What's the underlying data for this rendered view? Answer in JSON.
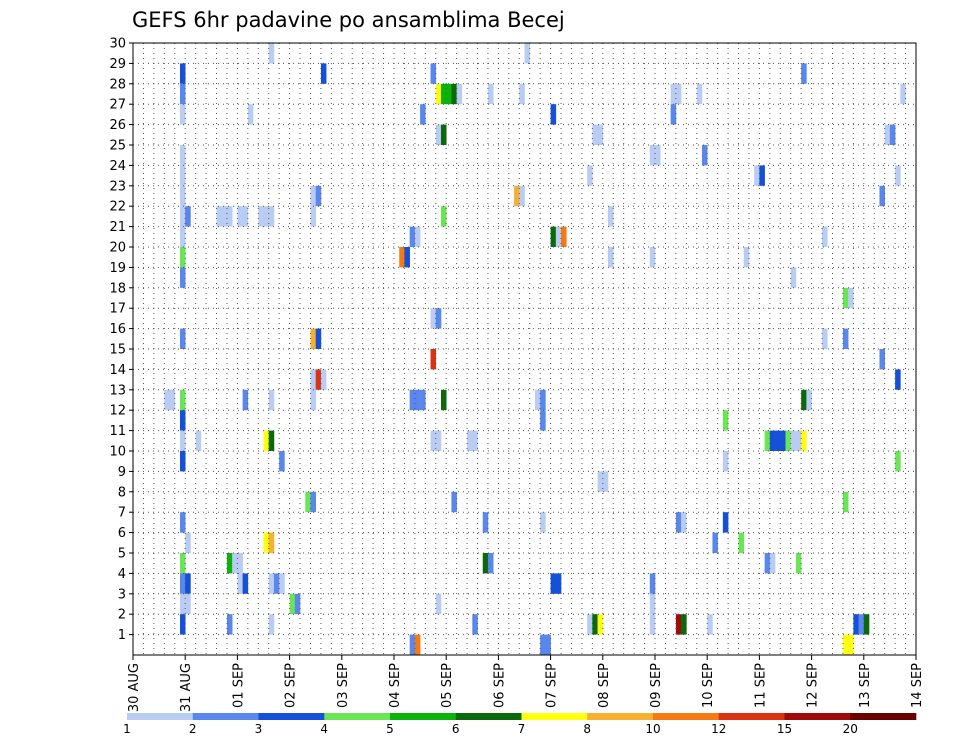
{
  "chart_data": {
    "type": "heatmap",
    "title": "GEFS 6hr padavine po ansamblima Becej",
    "x_ticks": [
      "30 AUG",
      "31 AUG",
      "01 SEP",
      "02 SEP",
      "03 SEP",
      "04 SEP",
      "05 SEP",
      "06 SEP",
      "07 SEP",
      "08 SEP",
      "09 SEP",
      "10 SEP",
      "11 SEP",
      "12 SEP",
      "13 SEP",
      "14 SEP"
    ],
    "y_ticks": [
      1,
      2,
      3,
      4,
      5,
      6,
      7,
      8,
      9,
      10,
      11,
      12,
      13,
      14,
      15,
      16,
      17,
      18,
      19,
      20,
      21,
      22,
      23,
      24,
      25,
      26,
      27,
      28,
      29,
      30
    ],
    "grid": true,
    "x_step_hours": 6,
    "colorbar": {
      "labels": [
        "1",
        "2",
        "3",
        "4",
        "5",
        "6",
        "7",
        "8",
        "10",
        "12",
        "15",
        "20"
      ],
      "colors": [
        "#b8ccf4",
        "#5a87ee",
        "#1550d8",
        "#6ae555",
        "#0ab40a",
        "#0a6a0a",
        "#ffff10",
        "#f8b030",
        "#f57a14",
        "#dc3214",
        "#a00a0a",
        "#6a0000"
      ]
    },
    "cells": [
      [
        1,
        30,
        2
      ],
      [
        9,
        30,
        7
      ],
      [
        59,
        30,
        2
      ],
      [
        115,
        30,
        1
      ],
      [
        116,
        30,
        1
      ],
      [
        133,
        30,
        1
      ],
      [
        134,
        30,
        1
      ],
      [
        142,
        30,
        10
      ],
      [
        26,
        29,
        1
      ],
      [
        75,
        29,
        1
      ],
      [
        9,
        28,
        3
      ],
      [
        36,
        28,
        3
      ],
      [
        57,
        28,
        2
      ],
      [
        128,
        28,
        2
      ],
      [
        9,
        27,
        2
      ],
      [
        58,
        27,
        7
      ],
      [
        59,
        27,
        5
      ],
      [
        60,
        27,
        5
      ],
      [
        61,
        27,
        6
      ],
      [
        62,
        27,
        1
      ],
      [
        68,
        27,
        1
      ],
      [
        74,
        27,
        1
      ],
      [
        103,
        27,
        1
      ],
      [
        104,
        27,
        1
      ],
      [
        108,
        27,
        1
      ],
      [
        147,
        27,
        1
      ],
      [
        9,
        26,
        1
      ],
      [
        22,
        26,
        1
      ],
      [
        55,
        26,
        2
      ],
      [
        80,
        26,
        3
      ],
      [
        103,
        26,
        2
      ],
      [
        58,
        25,
        1
      ],
      [
        59,
        25,
        6
      ],
      [
        88,
        25,
        1
      ],
      [
        89,
        25,
        1
      ],
      [
        144,
        25,
        1
      ],
      [
        145,
        25,
        2
      ],
      [
        9,
        24,
        1
      ],
      [
        99,
        24,
        1
      ],
      [
        100,
        24,
        1
      ],
      [
        109,
        24,
        2
      ],
      [
        9,
        23,
        1
      ],
      [
        87,
        23,
        1
      ],
      [
        119,
        23,
        1
      ],
      [
        120,
        23,
        3
      ],
      [
        146,
        23,
        1
      ],
      [
        9,
        22,
        1
      ],
      [
        34,
        22,
        1
      ],
      [
        35,
        22,
        2
      ],
      [
        73,
        22,
        8
      ],
      [
        74,
        22,
        1
      ],
      [
        143,
        22,
        2
      ],
      [
        9,
        21,
        1
      ],
      [
        10,
        21,
        2
      ],
      [
        16,
        21,
        1
      ],
      [
        17,
        21,
        1
      ],
      [
        18,
        21,
        1
      ],
      [
        20,
        21,
        1
      ],
      [
        21,
        21,
        1
      ],
      [
        24,
        21,
        1
      ],
      [
        25,
        21,
        1
      ],
      [
        26,
        21,
        1
      ],
      [
        34,
        21,
        1
      ],
      [
        59,
        21,
        4
      ],
      [
        91,
        21,
        1
      ],
      [
        9,
        20,
        1
      ],
      [
        53,
        20,
        2
      ],
      [
        54,
        20,
        1
      ],
      [
        80,
        20,
        6
      ],
      [
        81,
        20,
        1
      ],
      [
        82,
        20,
        9
      ],
      [
        132,
        20,
        1
      ],
      [
        9,
        19,
        4
      ],
      [
        51,
        19,
        9
      ],
      [
        52,
        19,
        3
      ],
      [
        91,
        19,
        1
      ],
      [
        99,
        19,
        1
      ],
      [
        117,
        19,
        1
      ],
      [
        9,
        18,
        2
      ],
      [
        126,
        18,
        1
      ],
      [
        136,
        17,
        4
      ],
      [
        137,
        17,
        1
      ],
      [
        57,
        16,
        1
      ],
      [
        58,
        16,
        2
      ],
      [
        9,
        15,
        2
      ],
      [
        34,
        15,
        8
      ],
      [
        35,
        15,
        3
      ],
      [
        132,
        15,
        1
      ],
      [
        136,
        15,
        2
      ],
      [
        57,
        14,
        10
      ],
      [
        143,
        14,
        2
      ],
      [
        34,
        13,
        1
      ],
      [
        35,
        13,
        10
      ],
      [
        36,
        13,
        1
      ],
      [
        146,
        13,
        3
      ],
      [
        6,
        12,
        1
      ],
      [
        7,
        12,
        1
      ],
      [
        9,
        12,
        4
      ],
      [
        21,
        12,
        2
      ],
      [
        26,
        12,
        1
      ],
      [
        34,
        12,
        1
      ],
      [
        53,
        12,
        2
      ],
      [
        54,
        12,
        2
      ],
      [
        55,
        12,
        2
      ],
      [
        59,
        12,
        6
      ],
      [
        77,
        12,
        1
      ],
      [
        78,
        12,
        2
      ],
      [
        128,
        12,
        6
      ],
      [
        129,
        12,
        1
      ],
      [
        9,
        11,
        3
      ],
      [
        78,
        11,
        2
      ],
      [
        113,
        11,
        4
      ],
      [
        9,
        10,
        1
      ],
      [
        12,
        10,
        1
      ],
      [
        25,
        10,
        7
      ],
      [
        26,
        10,
        6
      ],
      [
        57,
        10,
        1
      ],
      [
        58,
        10,
        1
      ],
      [
        64,
        10,
        1
      ],
      [
        65,
        10,
        1
      ],
      [
        121,
        10,
        4
      ],
      [
        122,
        10,
        3
      ],
      [
        123,
        10,
        3
      ],
      [
        124,
        10,
        3
      ],
      [
        125,
        10,
        4
      ],
      [
        126,
        10,
        1
      ],
      [
        127,
        10,
        1
      ],
      [
        128,
        10,
        7
      ],
      [
        9,
        9,
        3
      ],
      [
        28,
        9,
        2
      ],
      [
        113,
        9,
        1
      ],
      [
        146,
        9,
        4
      ],
      [
        89,
        8,
        1
      ],
      [
        90,
        8,
        1
      ],
      [
        33,
        7,
        4
      ],
      [
        34,
        7,
        2
      ],
      [
        61,
        7,
        2
      ],
      [
        136,
        7,
        4
      ],
      [
        9,
        6,
        2
      ],
      [
        67,
        6,
        2
      ],
      [
        78,
        6,
        1
      ],
      [
        104,
        6,
        2
      ],
      [
        105,
        6,
        1
      ],
      [
        113,
        6,
        3
      ],
      [
        10,
        5,
        1
      ],
      [
        25,
        5,
        7
      ],
      [
        26,
        5,
        8
      ],
      [
        111,
        5,
        2
      ],
      [
        116,
        5,
        4
      ],
      [
        9,
        4,
        4
      ],
      [
        18,
        4,
        5
      ],
      [
        19,
        4,
        1
      ],
      [
        20,
        4,
        1
      ],
      [
        67,
        4,
        6
      ],
      [
        68,
        4,
        2
      ],
      [
        121,
        4,
        2
      ],
      [
        122,
        4,
        1
      ],
      [
        127,
        4,
        4
      ],
      [
        9,
        3,
        2
      ],
      [
        10,
        3,
        3
      ],
      [
        20,
        3,
        1
      ],
      [
        21,
        3,
        3
      ],
      [
        26,
        3,
        1
      ],
      [
        27,
        3,
        2
      ],
      [
        28,
        3,
        1
      ],
      [
        80,
        3,
        3
      ],
      [
        81,
        3,
        3
      ],
      [
        99,
        3,
        2
      ],
      [
        9,
        2,
        1
      ],
      [
        10,
        2,
        1
      ],
      [
        30,
        2,
        4
      ],
      [
        31,
        2,
        2
      ],
      [
        58,
        2,
        1
      ],
      [
        99,
        2,
        1
      ],
      [
        9,
        1,
        3
      ],
      [
        18,
        1,
        2
      ],
      [
        26,
        1,
        1
      ],
      [
        65,
        1,
        2
      ],
      [
        87,
        1,
        1
      ],
      [
        88,
        1,
        6
      ],
      [
        89,
        1,
        7
      ],
      [
        99,
        1,
        1
      ],
      [
        104,
        1,
        11
      ],
      [
        105,
        1,
        6
      ],
      [
        110,
        1,
        1
      ],
      [
        138,
        1,
        3
      ],
      [
        139,
        1,
        2
      ],
      [
        140,
        1,
        6
      ],
      [
        53,
        0,
        2
      ],
      [
        54,
        0,
        9
      ],
      [
        78,
        0,
        2
      ],
      [
        79,
        0,
        2
      ],
      [
        136,
        0,
        7
      ],
      [
        137,
        0,
        7
      ]
    ]
  }
}
